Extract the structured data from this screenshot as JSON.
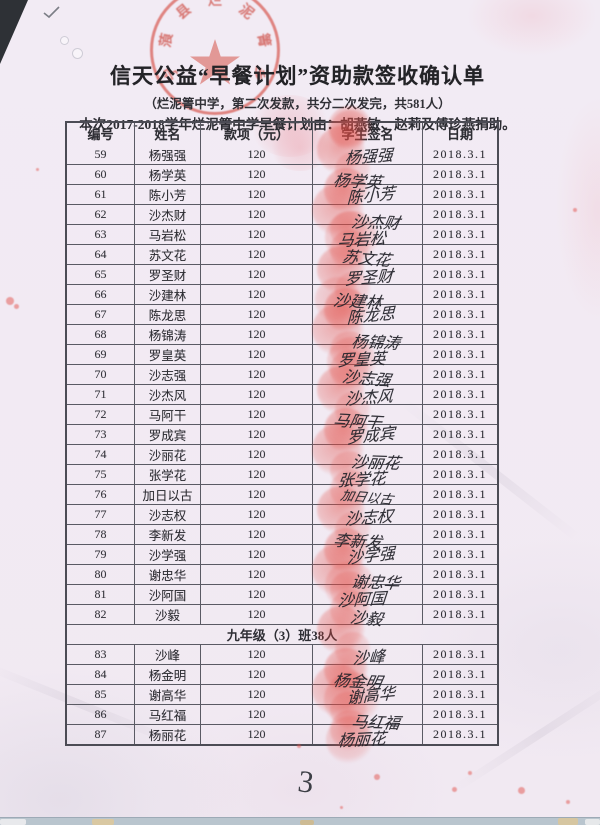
{
  "document": {
    "stamp_arc_text": "宁蒗县烂泥箐乡",
    "title": "信天公益“早餐计划”资助款签收确认单",
    "subtitle": "（烂泥箐中学，第二次发款，共分二次发完，共581人）",
    "funding_note": "本次2017-2018学年烂泥箐中学早餐计划由：胡燕敏、赵莉及傅珍燕捐助。",
    "page_number": "3"
  },
  "table": {
    "columns": [
      "编号",
      "姓名",
      "款项（元）",
      "学生签名",
      "日期"
    ],
    "section_label": "九年级（3）班38人",
    "section_after_no": "82",
    "rows": [
      {
        "no": "59",
        "name": "杨强强",
        "amount": "120",
        "signature": "杨强强",
        "date": "2018.3.1"
      },
      {
        "no": "60",
        "name": "杨学英",
        "amount": "120",
        "signature": "杨学英",
        "date": "2018.3.1"
      },
      {
        "no": "61",
        "name": "陈小芳",
        "amount": "120",
        "signature": "陈小芳",
        "date": "2018.3.1"
      },
      {
        "no": "62",
        "name": "沙杰财",
        "amount": "120",
        "signature": "沙杰财",
        "date": "2018.3.1"
      },
      {
        "no": "63",
        "name": "马岩松",
        "amount": "120",
        "signature": "马岩松",
        "date": "2018.3.1"
      },
      {
        "no": "64",
        "name": "苏文花",
        "amount": "120",
        "signature": "苏文花",
        "date": "2018.3.1"
      },
      {
        "no": "65",
        "name": "罗圣财",
        "amount": "120",
        "signature": "罗圣财",
        "date": "2018.3.1"
      },
      {
        "no": "66",
        "name": "沙建林",
        "amount": "120",
        "signature": "沙建林",
        "date": "2018.3.1"
      },
      {
        "no": "67",
        "name": "陈龙思",
        "amount": "120",
        "signature": "陈龙思",
        "date": "2018.3.1"
      },
      {
        "no": "68",
        "name": "杨锦涛",
        "amount": "120",
        "signature": "杨锦涛",
        "date": "2018.3.1"
      },
      {
        "no": "69",
        "name": "罗皇英",
        "amount": "120",
        "signature": "罗皇英",
        "date": "2018.3.1"
      },
      {
        "no": "70",
        "name": "沙志强",
        "amount": "120",
        "signature": "沙志强",
        "date": "2018.3.1"
      },
      {
        "no": "71",
        "name": "沙杰风",
        "amount": "120",
        "signature": "沙杰风",
        "date": "2018.3.1"
      },
      {
        "no": "72",
        "name": "马阿干",
        "amount": "120",
        "signature": "马阿干",
        "date": "2018.3.1"
      },
      {
        "no": "73",
        "name": "罗成宾",
        "amount": "120",
        "signature": "罗成宾",
        "date": "2018.3.1"
      },
      {
        "no": "74",
        "name": "沙丽花",
        "amount": "120",
        "signature": "沙丽花",
        "date": "2018.3.1"
      },
      {
        "no": "75",
        "name": "张学花",
        "amount": "120",
        "signature": "张学花",
        "date": "2018.3.1"
      },
      {
        "no": "76",
        "name": "加日以古",
        "amount": "120",
        "signature": "加日以古",
        "date": "2018.3.1"
      },
      {
        "no": "77",
        "name": "沙志权",
        "amount": "120",
        "signature": "沙志权",
        "date": "2018.3.1"
      },
      {
        "no": "78",
        "name": "李新发",
        "amount": "120",
        "signature": "李新发",
        "date": "2018.3.1"
      },
      {
        "no": "79",
        "name": "沙学强",
        "amount": "120",
        "signature": "沙学强",
        "date": "2018.3.1"
      },
      {
        "no": "80",
        "name": "谢忠华",
        "amount": "120",
        "signature": "谢忠华",
        "date": "2018.3.1"
      },
      {
        "no": "81",
        "name": "沙阿国",
        "amount": "120",
        "signature": "沙阿国",
        "date": "2018.3.1"
      },
      {
        "no": "82",
        "name": "沙毅",
        "amount": "120",
        "signature": "沙毅",
        "date": "2018.3.1"
      },
      {
        "no": "83",
        "name": "沙峰",
        "amount": "120",
        "signature": "沙峰",
        "date": "2018.3.1"
      },
      {
        "no": "84",
        "name": "杨金明",
        "amount": "120",
        "signature": "杨金明",
        "date": "2018.3.1"
      },
      {
        "no": "85",
        "name": "谢高华",
        "amount": "120",
        "signature": "谢高华",
        "date": "2018.3.1"
      },
      {
        "no": "86",
        "name": "马红福",
        "amount": "120",
        "signature": "马红福",
        "date": "2018.3.1"
      },
      {
        "no": "87",
        "name": "杨丽花",
        "amount": "120",
        "signature": "杨丽花",
        "date": "2018.3.1"
      }
    ]
  },
  "colors": {
    "stamp_red": "#d5534a",
    "fingerprint_red": "#e24a42",
    "ink": "#2e2e34",
    "paper": "#f2ebf4"
  }
}
